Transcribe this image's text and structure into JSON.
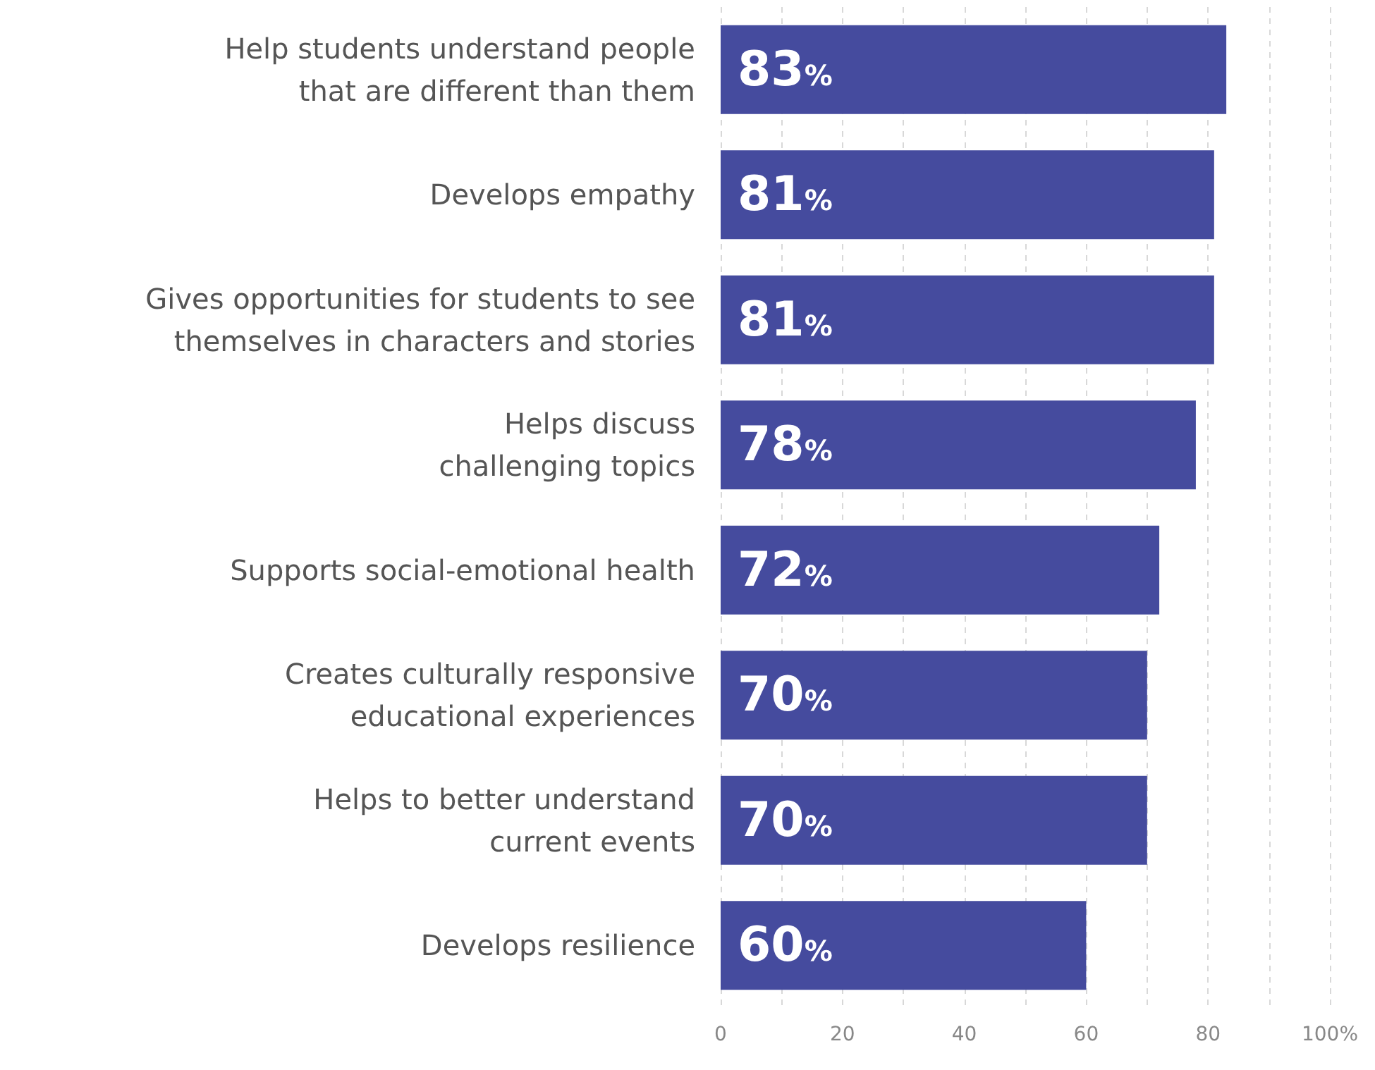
{
  "chart_data": {
    "type": "bar",
    "orientation": "horizontal",
    "categories": [
      "Help students understand people\nthat are different than them",
      "Develops empathy",
      "Gives opportunities for students to see\nthemselves in characters and stories",
      "Helps discuss\nchallenging topics",
      "Supports social-emotional health",
      "Creates culturally responsive\neducational experiences",
      "Helps to better understand\ncurrent events",
      "Develops resilience"
    ],
    "values": [
      83,
      81,
      81,
      78,
      72,
      70,
      70,
      60
    ],
    "value_labels": [
      "83%",
      "81%",
      "81%",
      "78%",
      "72%",
      "70%",
      "70%",
      "60%"
    ],
    "color": "#454b9e",
    "xlim": [
      0,
      100
    ],
    "xticks": [
      0,
      {
        "value": 10,
        "label": null
      },
      20,
      {
        "value": 30,
        "label": null
      },
      40,
      {
        "value": 50,
        "label": null
      },
      60,
      {
        "value": 70,
        "label": null
      },
      80,
      {
        "value": 90,
        "label": null
      },
      {
        "value": 100,
        "label": "100%"
      }
    ],
    "grid": "x"
  }
}
